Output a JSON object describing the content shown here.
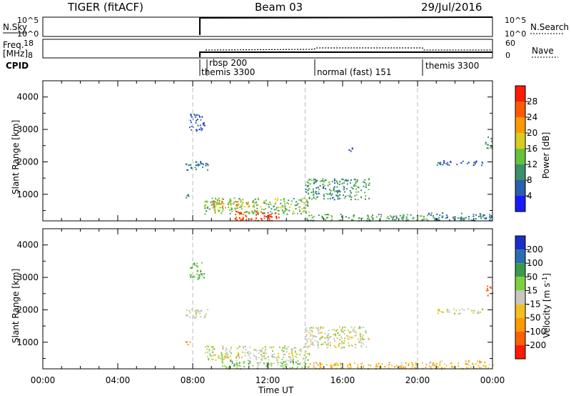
{
  "header": {
    "radar": "TIGER (fitACF)",
    "beam": "Beam 03",
    "date": "29/Jul/2016"
  },
  "strips": {
    "nsky_label": "N.Sky",
    "nsky_ticks": [
      "10^5",
      "10^0"
    ],
    "nsearch_label": "N.Search",
    "nsearch_ticks": [
      "10^5",
      "10^0"
    ],
    "freq_label_line1": "Freq.",
    "freq_label_line2": "[MHz]",
    "freq_ticks": [
      "18",
      "8"
    ],
    "nave_label": "Nave",
    "nave_ticks": [
      "60",
      "0"
    ],
    "cpid_label": "CPID",
    "cpid_segments": [
      {
        "top": "rbsp 200",
        "bottom": "themis 3300"
      },
      {
        "top": "",
        "bottom": "normal (fast) 151"
      },
      {
        "top": "",
        "bottom": "themis 3300"
      }
    ]
  },
  "axes": {
    "xlabel": "Time UT",
    "x_ticks": [
      "00:00",
      "04:00",
      "08:00",
      "12:00",
      "16:00",
      "20:00",
      "00:00"
    ],
    "ylabel": "Slant Range [km]",
    "y_ticks": [
      "1000",
      "2000",
      "3000",
      "4000"
    ]
  },
  "power_scale": {
    "label": "Power [dB]",
    "ticks": [
      "4",
      "8",
      "12",
      "16",
      "20",
      "24",
      "28"
    ],
    "colors": [
      "#1a1aff",
      "#2a5fb0",
      "#3b8f6a",
      "#66c23a",
      "#d8cc20",
      "#ff9900",
      "#ff5a00",
      "#ff1a00"
    ]
  },
  "velocity_scale": {
    "label": "Velocity [m s",
    "label_sup": "-1",
    "label_end": "]",
    "ticks": [
      "200",
      "100",
      "50",
      "15",
      "-15",
      "-50",
      "-100",
      "-200"
    ],
    "colors": [
      "#1a2fc8",
      "#2a6db0",
      "#3a9a4a",
      "#7fd040",
      "#c8c8c0",
      "#f0c020",
      "#ff9900",
      "#ff6000",
      "#ff1a00"
    ]
  },
  "chart_data": [
    {
      "type": "heatmap",
      "title": "Power",
      "xlabel": "Time UT",
      "ylabel": "Slant Range [km]",
      "xlim_hours": [
        0,
        24
      ],
      "ylim_km": [
        180,
        4500
      ],
      "colorbar": {
        "label": "Power [dB]",
        "range": [
          0,
          32
        ]
      },
      "scatter_regions": [
        {
          "t0": 7.6,
          "t1": 7.9,
          "r0": 900,
          "r1": 1050,
          "value": 8
        },
        {
          "t0": 7.6,
          "t1": 8.8,
          "r0": 1750,
          "r1": 2050,
          "value": 8
        },
        {
          "t0": 7.8,
          "t1": 8.6,
          "r0": 2950,
          "r1": 3500,
          "value": 6
        },
        {
          "t0": 8.6,
          "t1": 14.2,
          "r0": 400,
          "r1": 900,
          "value": 14
        },
        {
          "t0": 10.2,
          "t1": 12.6,
          "r0": 200,
          "r1": 500,
          "value": 28
        },
        {
          "t0": 9.0,
          "t1": 11.0,
          "r0": 600,
          "r1": 800,
          "value": 22
        },
        {
          "t0": 14.0,
          "t1": 17.4,
          "r0": 850,
          "r1": 1500,
          "value": 10
        },
        {
          "t0": 14.0,
          "t1": 20.5,
          "r0": 200,
          "r1": 400,
          "value": 12
        },
        {
          "t0": 20.5,
          "t1": 24.0,
          "r0": 200,
          "r1": 450,
          "value": 8
        },
        {
          "t0": 21.0,
          "t1": 23.5,
          "r0": 1900,
          "r1": 2050,
          "value": 6
        },
        {
          "t0": 23.6,
          "t1": 24.0,
          "r0": 2400,
          "r1": 2800,
          "value": 10
        },
        {
          "t0": 16.2,
          "t1": 16.6,
          "r0": 2350,
          "r1": 2480,
          "value": 6
        }
      ]
    },
    {
      "type": "heatmap",
      "title": "Velocity",
      "xlabel": "Time UT",
      "ylabel": "Slant Range [km]",
      "xlim_hours": [
        0,
        24
      ],
      "ylim_km": [
        180,
        4500
      ],
      "colorbar": {
        "label": "Velocity [m s-1]",
        "range": [
          -250,
          250
        ]
      },
      "scatter_regions": [
        {
          "t0": 7.6,
          "t1": 7.9,
          "r0": 900,
          "r1": 1050,
          "value": -100
        },
        {
          "t0": 7.6,
          "t1": 8.8,
          "r0": 1750,
          "r1": 2050,
          "value": 0
        },
        {
          "t0": 7.8,
          "t1": 8.6,
          "r0": 2950,
          "r1": 3500,
          "value": 40
        },
        {
          "t0": 8.6,
          "t1": 14.2,
          "r0": 450,
          "r1": 900,
          "value": 0
        },
        {
          "t0": 9.5,
          "t1": 14.0,
          "r0": 200,
          "r1": 450,
          "value": 30
        },
        {
          "t0": 14.0,
          "t1": 17.4,
          "r0": 850,
          "r1": 1500,
          "value": 0
        },
        {
          "t0": 14.0,
          "t1": 20.5,
          "r0": 200,
          "r1": 400,
          "value": -40
        },
        {
          "t0": 20.5,
          "t1": 24.0,
          "r0": 200,
          "r1": 450,
          "value": -30
        },
        {
          "t0": 21.0,
          "t1": 23.5,
          "r0": 1900,
          "r1": 2050,
          "value": 0
        },
        {
          "t0": 23.6,
          "t1": 24.0,
          "r0": 2450,
          "r1": 2750,
          "value": -150
        }
      ]
    }
  ]
}
